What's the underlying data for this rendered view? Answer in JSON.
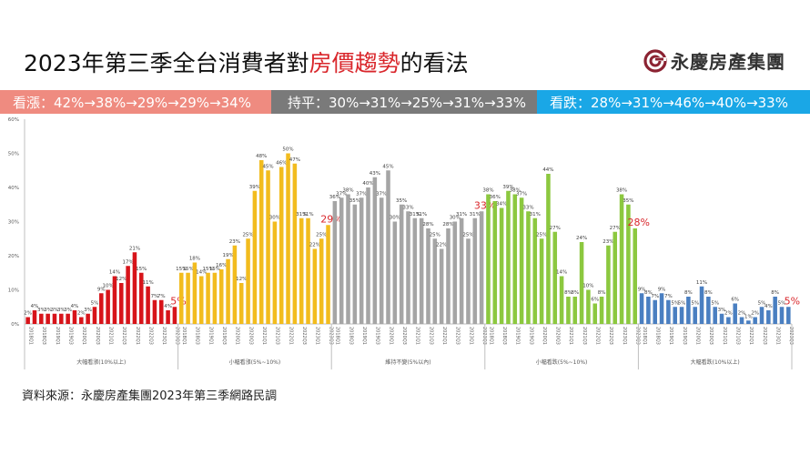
{
  "header": {
    "title_prefix": "2023年第三季全台消費者對",
    "title_highlight": "房價趨勢",
    "title_suffix": "的看法",
    "logo_text": "永慶房產集團",
    "logo_icon": "swirl-logo-icon",
    "brand_color": "#8b2332"
  },
  "banners": {
    "up": "看漲：42%→38%→29%→29%→34%",
    "flat": "持平：30%→31%→25%→31%→33%",
    "down": "看跌：28%→31%→46%→40%→33%"
  },
  "footer": {
    "source": "資料來源：永慶房產集團2023年第三季網路民調"
  },
  "chart_data": {
    "type": "bar",
    "title": "2023年第三季全台消費者對房價趨勢的看法",
    "xlabel": "",
    "ylabel": "",
    "ylim": [
      0,
      60
    ],
    "yticks": [
      "0%",
      "10%",
      "20%",
      "30%",
      "40%",
      "50%",
      "60%"
    ],
    "grid": false,
    "quarters": [
      "2018Q1",
      "2018Q2",
      "2018Q3",
      "2018Q4",
      "2019Q1",
      "2019Q2",
      "2019Q3",
      "2019Q4",
      "2020Q1",
      "2020Q2",
      "2020Q3",
      "2020Q4",
      "2021Q1",
      "2021Q2",
      "2021Q3",
      "2021Q4",
      "2022Q1",
      "2022Q2",
      "2022Q3",
      "2022Q4",
      "2023Q1",
      "2023Q2",
      "2023Q3"
    ],
    "series": [
      {
        "name": "大幅看漲(10%以上)",
        "color": "#d7141a",
        "values": [
          2,
          4,
          3,
          3,
          3,
          3,
          3,
          4,
          2,
          3,
          5,
          9,
          10,
          14,
          12,
          17,
          21,
          15,
          11,
          7,
          7,
          4,
          5
        ],
        "highlight_last": "5%"
      },
      {
        "name": "小幅看漲(5%~10%)",
        "color": "#f2bc1e",
        "values": [
          15,
          15,
          18,
          14,
          15,
          15,
          16,
          19,
          23,
          12,
          25,
          39,
          48,
          45,
          30,
          46,
          50,
          47,
          31,
          31,
          22,
          25,
          29
        ],
        "highlight_last": "29%"
      },
      {
        "name": "維持不變(5%以內)",
        "color": "#a5a5a5",
        "values": [
          36,
          37,
          38,
          35,
          37,
          40,
          43,
          37,
          45,
          30,
          35,
          33,
          31,
          31,
          28,
          25,
          22,
          28,
          30,
          31,
          25,
          31,
          33
        ],
        "highlight_last": "33%"
      },
      {
        "name": "小幅看跌(5%~10%)",
        "color": "#8cc83f",
        "values": [
          38,
          36,
          34,
          39,
          38,
          37,
          33,
          31,
          25,
          44,
          27,
          14,
          8,
          8,
          24,
          10,
          6,
          8,
          23,
          27,
          38,
          35,
          28
        ],
        "highlight_last": "28%"
      },
      {
        "name": "大幅看跌(10%以上)",
        "color": "#4a7fc1",
        "values": [
          9,
          8,
          7,
          9,
          7,
          5,
          5,
          8,
          5,
          11,
          8,
          5,
          3,
          2,
          6,
          2,
          1,
          2,
          5,
          4,
          8,
          5,
          5
        ],
        "highlight_last": "5%"
      }
    ],
    "highlight_color": "#d9262b"
  }
}
